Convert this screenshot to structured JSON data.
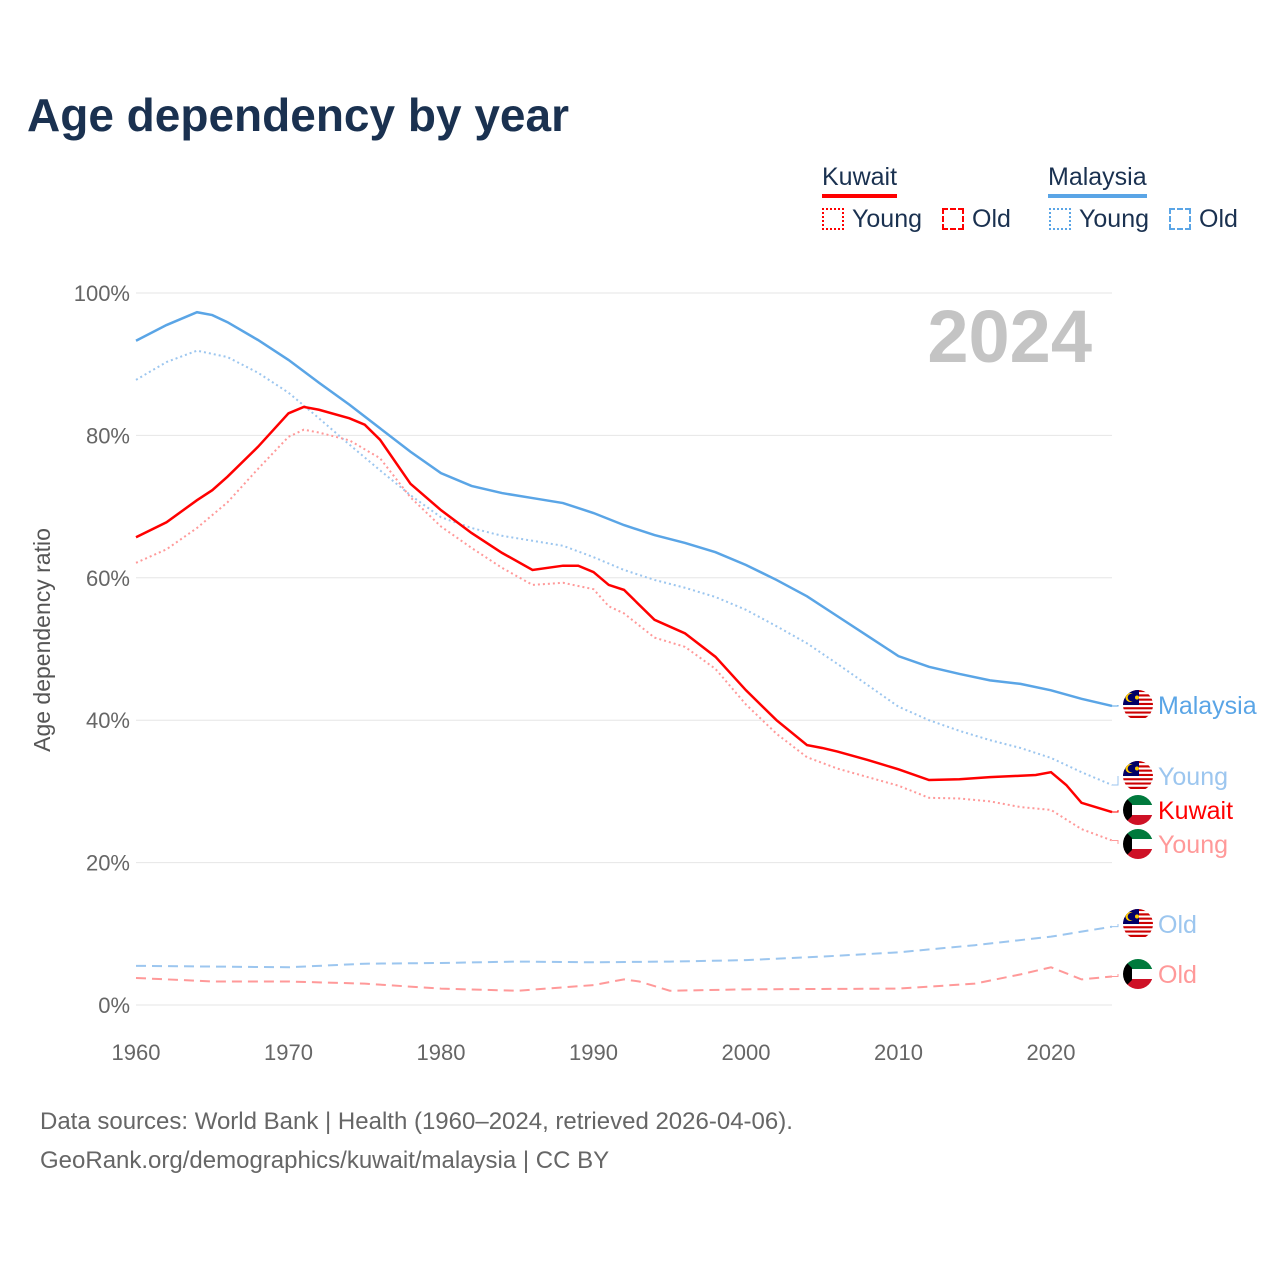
{
  "title": "Age dependency by year",
  "legend": {
    "kuwait": "Kuwait",
    "malaysia": "Malaysia",
    "young": "Young",
    "old": "Old"
  },
  "colors": {
    "kuwait": "#ff0000",
    "kuwait_light": "#ff9999",
    "malaysia": "#5aa5e6",
    "malaysia_light": "#9cc6ef",
    "title": "#1a3150"
  },
  "source_line1": "Data sources: World Bank | Health (1960–2024, retrieved 2026-04-06).",
  "source_line2": "GeoRank.org/demographics/kuwait/malaysia | CC BY",
  "chart_data": {
    "type": "line",
    "ylabel": "Age dependency ratio",
    "year_label": "2024",
    "xlim": [
      1960,
      2024
    ],
    "ylim": [
      0,
      100
    ],
    "x_ticks": [
      1960,
      1970,
      1980,
      1990,
      2000,
      2010,
      2020
    ],
    "y_ticks": [
      "0%",
      "20%",
      "40%",
      "60%",
      "80%",
      "100%"
    ],
    "series": [
      {
        "name": "Malaysia",
        "end_label": "Malaysia",
        "points": [
          [
            1960,
            93.3
          ],
          [
            1962,
            95.5
          ],
          [
            1964,
            97.3
          ],
          [
            1965,
            96.9
          ],
          [
            1966,
            95.9
          ],
          [
            1968,
            93.4
          ],
          [
            1970,
            90.6
          ],
          [
            1972,
            87.4
          ],
          [
            1974,
            84.3
          ],
          [
            1976,
            81
          ],
          [
            1978,
            77.7
          ],
          [
            1980,
            74.7
          ],
          [
            1982,
            72.9
          ],
          [
            1984,
            71.9
          ],
          [
            1986,
            71.2
          ],
          [
            1988,
            70.5
          ],
          [
            1990,
            69.1
          ],
          [
            1992,
            67.4
          ],
          [
            1994,
            66
          ],
          [
            1996,
            64.9
          ],
          [
            1998,
            63.6
          ],
          [
            2000,
            61.8
          ],
          [
            2002,
            59.7
          ],
          [
            2004,
            57.4
          ],
          [
            2006,
            54.6
          ],
          [
            2008,
            51.8
          ],
          [
            2010,
            49
          ],
          [
            2012,
            47.5
          ],
          [
            2014,
            46.5
          ],
          [
            2016,
            45.6
          ],
          [
            2018,
            45.1
          ],
          [
            2020,
            44.2
          ],
          [
            2022,
            43
          ],
          [
            2024,
            42
          ]
        ]
      },
      {
        "name": "Malaysia Young",
        "end_label": "Young",
        "points": [
          [
            1960,
            87.8
          ],
          [
            1962,
            90.3
          ],
          [
            1964,
            91.9
          ],
          [
            1966,
            91
          ],
          [
            1968,
            88.8
          ],
          [
            1970,
            86
          ],
          [
            1972,
            82.4
          ],
          [
            1974,
            78.7
          ],
          [
            1976,
            75.1
          ],
          [
            1978,
            71.6
          ],
          [
            1980,
            68.5
          ],
          [
            1982,
            67
          ],
          [
            1984,
            65.9
          ],
          [
            1986,
            65.2
          ],
          [
            1988,
            64.5
          ],
          [
            1990,
            62.9
          ],
          [
            1992,
            61.1
          ],
          [
            1994,
            59.7
          ],
          [
            1996,
            58.6
          ],
          [
            1998,
            57.3
          ],
          [
            2000,
            55.5
          ],
          [
            2002,
            53.2
          ],
          [
            2004,
            50.8
          ],
          [
            2006,
            47.9
          ],
          [
            2008,
            44.9
          ],
          [
            2010,
            41.9
          ],
          [
            2012,
            40
          ],
          [
            2014,
            38.5
          ],
          [
            2016,
            37.2
          ],
          [
            2018,
            36.1
          ],
          [
            2020,
            34.7
          ],
          [
            2022,
            32.7
          ],
          [
            2024,
            30.9
          ]
        ]
      },
      {
        "name": "Malaysia Old",
        "end_label": "Old",
        "points": [
          [
            1960,
            5.5
          ],
          [
            1965,
            5.4
          ],
          [
            1970,
            5.3
          ],
          [
            1975,
            5.8
          ],
          [
            1980,
            5.9
          ],
          [
            1985,
            6.1
          ],
          [
            1990,
            6
          ],
          [
            1995,
            6.1
          ],
          [
            2000,
            6.3
          ],
          [
            2005,
            6.8
          ],
          [
            2010,
            7.4
          ],
          [
            2015,
            8.4
          ],
          [
            2020,
            9.6
          ],
          [
            2024,
            11
          ]
        ]
      },
      {
        "name": "Kuwait",
        "end_label": "Kuwait",
        "points": [
          [
            1960,
            65.7
          ],
          [
            1962,
            67.8
          ],
          [
            1964,
            70.9
          ],
          [
            1965,
            72.3
          ],
          [
            1966,
            74.2
          ],
          [
            1968,
            78.4
          ],
          [
            1970,
            83.1
          ],
          [
            1971,
            84
          ],
          [
            1972,
            83.6
          ],
          [
            1974,
            82.4
          ],
          [
            1975,
            81.5
          ],
          [
            1976,
            79.4
          ],
          [
            1978,
            73.2
          ],
          [
            1980,
            69.5
          ],
          [
            1982,
            66.3
          ],
          [
            1984,
            63.5
          ],
          [
            1986,
            61.1
          ],
          [
            1988,
            61.7
          ],
          [
            1989,
            61.7
          ],
          [
            1990,
            60.8
          ],
          [
            1991,
            59
          ],
          [
            1992,
            58.3
          ],
          [
            1994,
            54.1
          ],
          [
            1996,
            52.2
          ],
          [
            1998,
            48.9
          ],
          [
            2000,
            44.2
          ],
          [
            2002,
            40
          ],
          [
            2004,
            36.5
          ],
          [
            2005,
            36.1
          ],
          [
            2006,
            35.6
          ],
          [
            2008,
            34.4
          ],
          [
            2010,
            33.1
          ],
          [
            2012,
            31.6
          ],
          [
            2014,
            31.7
          ],
          [
            2016,
            32
          ],
          [
            2018,
            32.2
          ],
          [
            2019,
            32.3
          ],
          [
            2020,
            32.7
          ],
          [
            2021,
            30.9
          ],
          [
            2022,
            28.4
          ],
          [
            2024,
            27.1
          ]
        ]
      },
      {
        "name": "Kuwait Young",
        "end_label": "Young",
        "points": [
          [
            1960,
            62.1
          ],
          [
            1962,
            64
          ],
          [
            1964,
            67
          ],
          [
            1966,
            70.6
          ],
          [
            1968,
            75.3
          ],
          [
            1970,
            79.8
          ],
          [
            1971,
            80.8
          ],
          [
            1972,
            80.4
          ],
          [
            1974,
            79.3
          ],
          [
            1976,
            76.8
          ],
          [
            1978,
            71.3
          ],
          [
            1980,
            67.2
          ],
          [
            1982,
            64.2
          ],
          [
            1984,
            61.4
          ],
          [
            1986,
            59
          ],
          [
            1988,
            59.3
          ],
          [
            1990,
            58.4
          ],
          [
            1991,
            56
          ],
          [
            1992,
            55
          ],
          [
            1994,
            51.6
          ],
          [
            1996,
            50.3
          ],
          [
            1998,
            47.2
          ],
          [
            2000,
            42.2
          ],
          [
            2002,
            38.1
          ],
          [
            2004,
            34.8
          ],
          [
            2006,
            33.2
          ],
          [
            2008,
            32
          ],
          [
            2010,
            30.8
          ],
          [
            2012,
            29.1
          ],
          [
            2014,
            29
          ],
          [
            2016,
            28.6
          ],
          [
            2018,
            27.8
          ],
          [
            2020,
            27.4
          ],
          [
            2022,
            24.7
          ],
          [
            2024,
            23.1
          ]
        ]
      },
      {
        "name": "Kuwait Old",
        "end_label": "Old",
        "points": [
          [
            1960,
            3.8
          ],
          [
            1965,
            3.3
          ],
          [
            1970,
            3.3
          ],
          [
            1975,
            3
          ],
          [
            1980,
            2.3
          ],
          [
            1985,
            2
          ],
          [
            1990,
            2.8
          ],
          [
            1992,
            3.6
          ],
          [
            1993,
            3.3
          ],
          [
            1995,
            2
          ],
          [
            2000,
            2.2
          ],
          [
            2010,
            2.3
          ],
          [
            2015,
            3
          ],
          [
            2018,
            4.3
          ],
          [
            2020,
            5.3
          ],
          [
            2022,
            3.6
          ],
          [
            2024,
            4
          ]
        ]
      }
    ]
  }
}
